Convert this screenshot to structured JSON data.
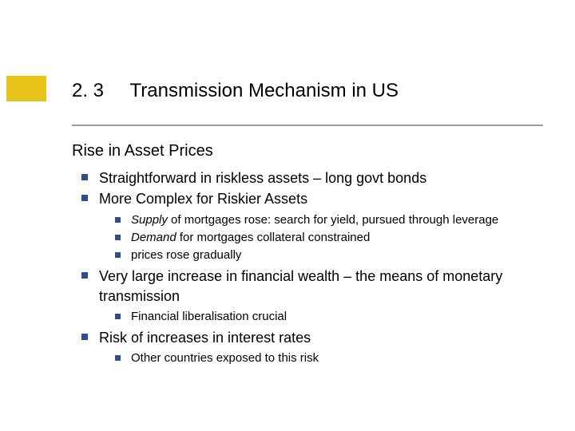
{
  "accent_color": "#e9c419",
  "bullet_color": "#2f4f8a",
  "rule_color": "#9a9a9a",
  "header": {
    "number": "2. 3",
    "title": "Transmission Mechanism in US"
  },
  "subtitle": "Rise in Asset Prices",
  "bullets": [
    {
      "text": "Straightforward in riskless assets – long govt bonds",
      "children": []
    },
    {
      "text": "More Complex for Riskier Assets",
      "children": [
        {
          "lead_italic": "Supply",
          "rest": " of mortgages rose: search for yield, pursued through leverage"
        },
        {
          "lead_italic": "Demand",
          "rest": "  for mortgages collateral constrained"
        },
        {
          "text": "prices rose gradually"
        }
      ]
    },
    {
      "text": "Very large increase in financial wealth – the means of monetary transmission",
      "children": [
        {
          "text": "Financial liberalisation crucial"
        }
      ]
    },
    {
      "text": "Risk of increases in interest rates",
      "children": [
        {
          "text": "Other countries exposed to this risk"
        }
      ]
    }
  ]
}
